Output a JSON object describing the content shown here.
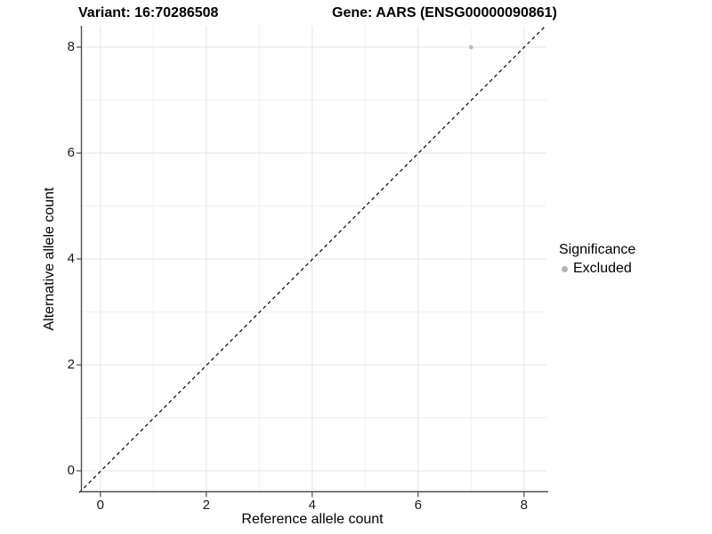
{
  "titles": {
    "variant": "Variant: 16:70286508",
    "gene": "Gene: AARS (ENSG00000090861)"
  },
  "chart_data": {
    "type": "scatter",
    "title_left": "Variant: 16:70286508",
    "title_right": "Gene: AARS (ENSG00000090861)",
    "xlabel": "Reference allele count",
    "ylabel": "Alternative allele count",
    "xlim": [
      -0.42,
      8.42
    ],
    "ylim": [
      -0.42,
      8.42
    ],
    "x_ticks": [
      0,
      2,
      4,
      6,
      8
    ],
    "y_ticks": [
      0,
      2,
      4,
      6,
      8
    ],
    "minor_gridlines_x": [
      1,
      3,
      5,
      7
    ],
    "minor_gridlines_y": [
      1,
      3,
      5,
      7
    ],
    "grid": true,
    "points": [
      {
        "x": 7,
        "y": 8,
        "series": "Excluded",
        "color": "#bdbdbd"
      }
    ],
    "reference_line": {
      "type": "abline",
      "slope": 1,
      "intercept": 0,
      "style": "dashed",
      "color": "#000000"
    },
    "legend": {
      "title": "Significance",
      "position": "right",
      "items": [
        {
          "label": "Excluded",
          "marker": "circle",
          "color": "#b3b3b3"
        }
      ]
    },
    "colors": {
      "axis_line": "#4d4d4d",
      "major_grid": "#e4e4e4",
      "minor_grid": "#f0f0f0",
      "point": "#bdbdbd"
    }
  }
}
